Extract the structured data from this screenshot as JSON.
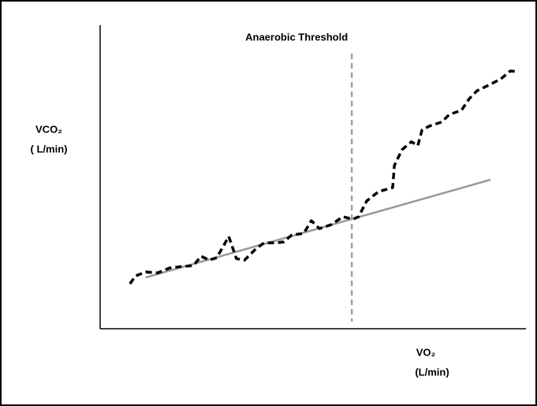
{
  "chart_data": {
    "type": "line",
    "xlabel": [
      "VO₂",
      "(L/min)"
    ],
    "ylabel": [
      "VCO₂",
      "( L/min)"
    ],
    "xlim": [
      0,
      100
    ],
    "ylim": [
      0,
      100
    ],
    "annotations": [
      {
        "text": "Anaerobic Threshold",
        "x": 59.1,
        "color": "#a0a0a0"
      }
    ],
    "series": [
      {
        "color": "#000000",
        "dash": true,
        "x": [
          7.0,
          8.3,
          10.7,
          13.5,
          16.3,
          19.1,
          21.9,
          23.7,
          25.6,
          27.4,
          30.2,
          32.0,
          33.9,
          36.7,
          38.5,
          41.3,
          43.1,
          45.0,
          47.8,
          49.6,
          51.5,
          54.3,
          57.0,
          59.4,
          60.7,
          62.6,
          65.4,
          68.7,
          69.1,
          70.9,
          73.1,
          74.6,
          75.6,
          77.4,
          80.2,
          82.0,
          84.8,
          86.7,
          88.5,
          91.3,
          94.1,
          96.3,
          98.3
        ],
        "values": [
          14.8,
          17.4,
          18.7,
          18.4,
          20.0,
          20.5,
          20.8,
          23.9,
          22.6,
          23.4,
          30.4,
          23.1,
          22.6,
          26.5,
          28.3,
          28.3,
          28.6,
          30.9,
          31.4,
          35.6,
          33.0,
          34.3,
          36.9,
          36.1,
          36.9,
          42.1,
          45.2,
          46.5,
          53.8,
          59.0,
          61.6,
          60.3,
          65.5,
          66.8,
          68.1,
          70.6,
          71.9,
          75.8,
          78.4,
          80.3,
          82.3,
          84.9,
          84.7
        ]
      },
      {
        "color": "#999999",
        "dash": false,
        "x": [
          10.7,
          91.7
        ],
        "values": [
          16.9,
          49.1
        ]
      }
    ]
  }
}
